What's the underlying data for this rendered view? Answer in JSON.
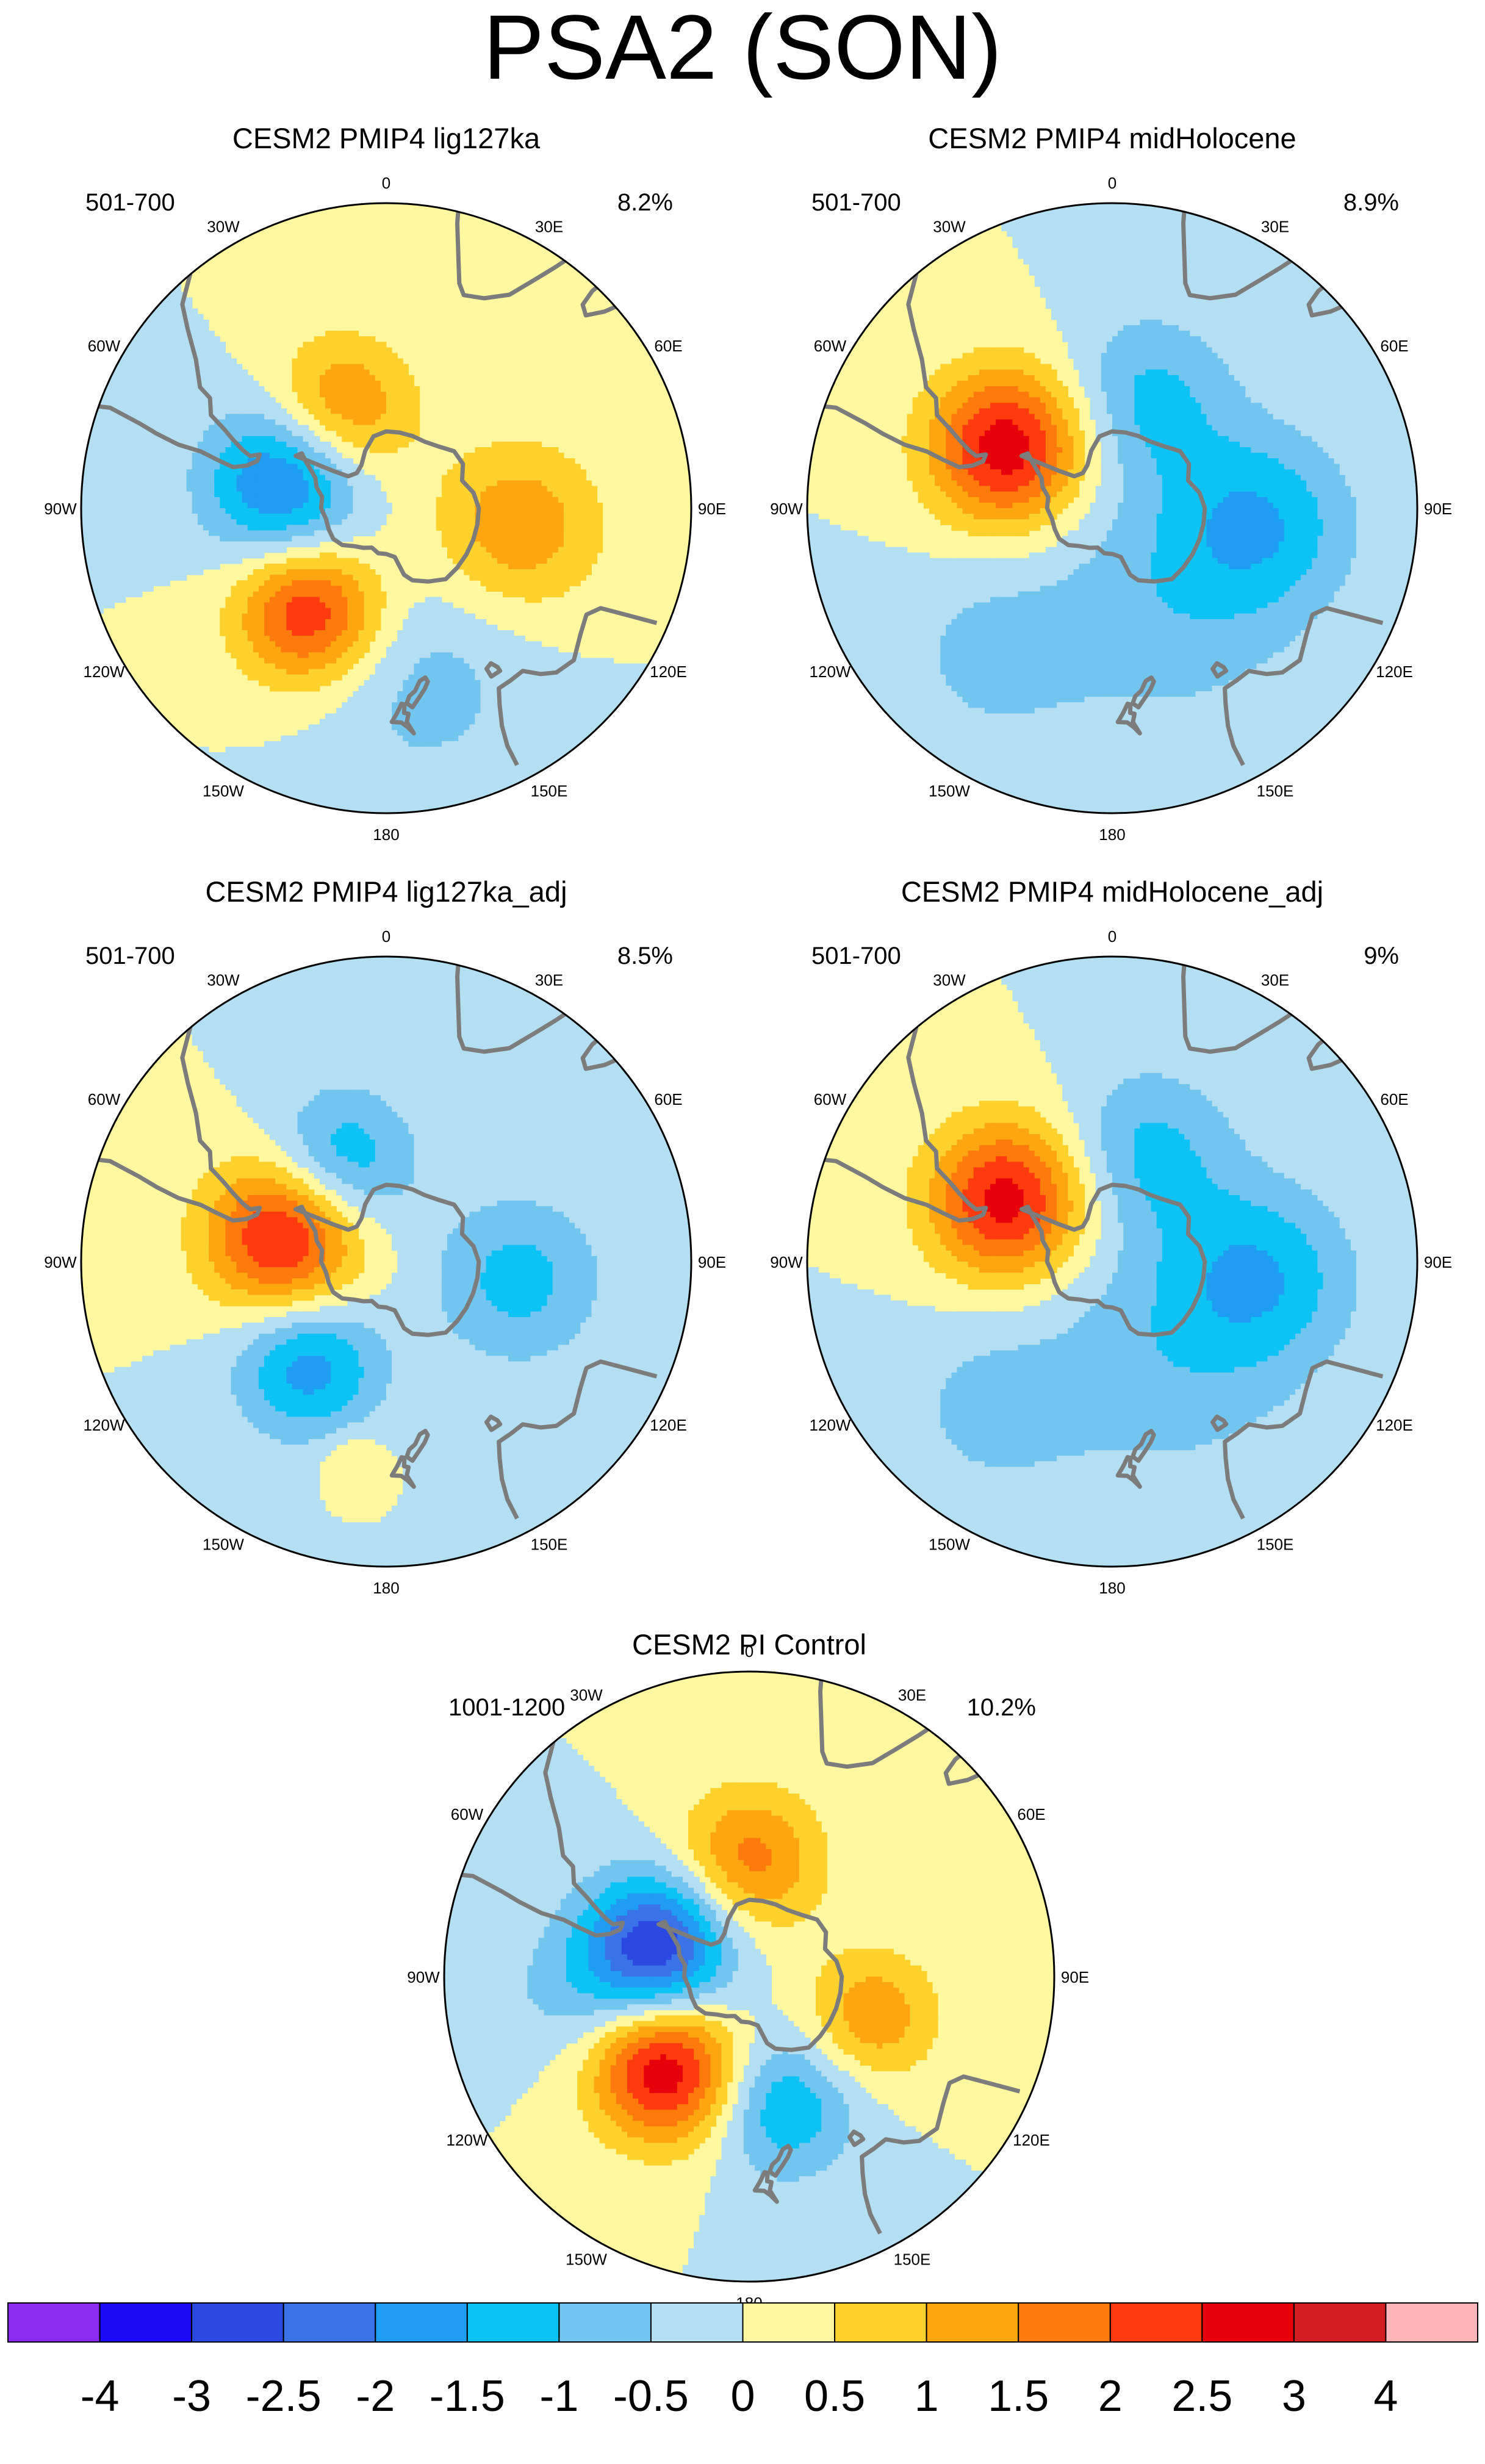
{
  "figure": {
    "title": "PSA2 (SON)"
  },
  "panels": [
    {
      "id": "lig127ka",
      "title": "CESM2 PMIP4 lig127ka",
      "years": "501-700",
      "variance": "8.2%",
      "features": [
        {
          "lon": -25,
          "lat": -62,
          "value": 1.7,
          "spread": 12
        },
        {
          "lon": -76,
          "lat": -63,
          "value": -2.3,
          "spread": 13
        },
        {
          "lon": -143,
          "lat": -57,
          "value": 2.5,
          "spread": 12
        },
        {
          "lon": 98,
          "lat": -56,
          "value": 1.4,
          "spread": 14
        },
        {
          "lon": 168,
          "lat": -45,
          "value": -0.7,
          "spread": 18
        }
      ]
    },
    {
      "id": "midHolocene",
      "title": "CESM2 PMIP4 midHolocene",
      "years": "501-700",
      "variance": "8.9%",
      "features": [
        {
          "lon": -60,
          "lat": -59,
          "value": 2.9,
          "spread": 13
        },
        {
          "lon": 18,
          "lat": -60,
          "value": -1.1,
          "spread": 14
        },
        {
          "lon": 95,
          "lat": -52,
          "value": -1.3,
          "spread": 15
        },
        {
          "lon": 150,
          "lat": -62,
          "value": -0.8,
          "spread": 22
        },
        {
          "lon": -140,
          "lat": -42,
          "value": -0.6,
          "spread": 16
        }
      ]
    },
    {
      "id": "lig127ka_adj",
      "title": "CESM2 PMIP4 lig127ka_adj",
      "years": "501-700",
      "variance": "8.5%",
      "features": [
        {
          "lon": -76,
          "lat": -63,
          "value": 2.8,
          "spread": 13
        },
        {
          "lon": -25,
          "lat": -62,
          "value": -1.6,
          "spread": 12
        },
        {
          "lon": -143,
          "lat": -57,
          "value": -1.8,
          "spread": 12
        },
        {
          "lon": 98,
          "lat": -56,
          "value": -1.2,
          "spread": 14
        },
        {
          "lon": -170,
          "lat": -40,
          "value": 0.7,
          "spread": 5
        }
      ]
    },
    {
      "id": "midHolocene_adj",
      "title": "CESM2 PMIP4 midHolocene_adj",
      "years": "501-700",
      "variance": "9%",
      "features": [
        {
          "lon": -60,
          "lat": -59,
          "value": 2.8,
          "spread": 13
        },
        {
          "lon": 18,
          "lat": -60,
          "value": -1.1,
          "spread": 14
        },
        {
          "lon": 95,
          "lat": -52,
          "value": -1.3,
          "spread": 15
        },
        {
          "lon": 150,
          "lat": -62,
          "value": -0.8,
          "spread": 22
        },
        {
          "lon": -140,
          "lat": -42,
          "value": -0.6,
          "spread": 16
        }
      ]
    },
    {
      "id": "piControl",
      "title": "CESM2 PI Control",
      "years": "1001-1200",
      "variance": "10.2%",
      "features": [
        {
          "lon": 0,
          "lat": -60,
          "value": 1.7,
          "spread": 12
        },
        {
          "lon": -72,
          "lat": -65,
          "value": -3.0,
          "spread": 12
        },
        {
          "lon": -138,
          "lat": -58,
          "value": 3.0,
          "spread": 12
        },
        {
          "lon": 108,
          "lat": -57,
          "value": 1.4,
          "spread": 11
        },
        {
          "lon": 165,
          "lat": -56,
          "value": -1.5,
          "spread": 12
        },
        {
          "lon": -95,
          "lat": -45,
          "value": -0.6,
          "spread": 12
        }
      ]
    }
  ],
  "map_labels": {
    "lon_labels": [
      "0",
      "30E",
      "60E",
      "90E",
      "120E",
      "150E",
      "180",
      "150W",
      "120W",
      "90W",
      "60W",
      "30W"
    ],
    "lon_values": [
      0,
      30,
      60,
      90,
      120,
      150,
      180,
      -150,
      -120,
      -90,
      -60,
      -30
    ]
  },
  "colorbar": {
    "labels": [
      "-4",
      "-3",
      "-2.5",
      "-2",
      "-1.5",
      "-1",
      "-0.5",
      "0",
      "0.5",
      "1",
      "1.5",
      "2",
      "2.5",
      "3",
      "4"
    ],
    "levels": [
      -4,
      -3,
      -2.5,
      -2,
      -1.5,
      -1,
      -0.5,
      0,
      0.5,
      1,
      1.5,
      2,
      2.5,
      3,
      4
    ],
    "colors": [
      "#8b2bf0",
      "#1a0af5",
      "#2b49e0",
      "#3a72e8",
      "#1f9df2",
      "#0dc3f5",
      "#72c5ee",
      "#b4def2",
      "#fff8a0",
      "#ffd12c",
      "#fea60f",
      "#fe7a0c",
      "#fe3b0e",
      "#e7000b",
      "#d21e23",
      "#ffb6b9"
    ]
  },
  "style": {
    "coast_color": "#7c7c7c",
    "background": "#ffffff"
  }
}
